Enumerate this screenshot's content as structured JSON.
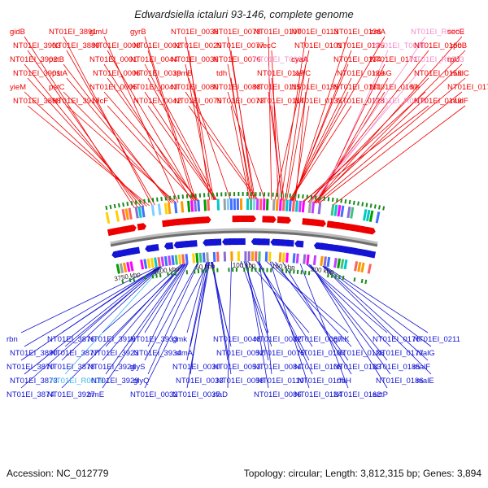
{
  "title": "Edwardsiella ictaluri 93-146, complete genome",
  "accession": "Accession: NC_012779",
  "topology": "Topology: circular; Length: 3,812,315 bp; Genes: 3,894",
  "colors": {
    "forward_gene": "#ee0000",
    "reverse_gene": "#1414d4",
    "rna_gene": "#f28ec8",
    "rna_gene_reverse": "#3ab4e8",
    "backbone": "#6e6e6e",
    "tick": "#1a8a1a"
  },
  "scale_ticks": [
    {
      "label": "3750 kbp",
      "pos": 3750
    },
    {
      "label": "3800 kbp",
      "pos": 3800
    },
    {
      "label": "50 kbp",
      "pos": 50
    },
    {
      "label": "100 kbp",
      "pos": 100
    },
    {
      "label": "150 kbp",
      "pos": 150
    },
    {
      "label": "200 kbp",
      "pos": 200
    }
  ],
  "top_labels": [
    {
      "text": "gidB",
      "type": "cds",
      "anchor": -0.16
    },
    {
      "text": "NT01EI_3903",
      "type": "cds",
      "anchor": -0.155
    },
    {
      "text": "NT01EI_3902",
      "type": "cds",
      "anchor": -0.15
    },
    {
      "text": "NT01EI_3901",
      "type": "cds",
      "anchor": -0.146
    },
    {
      "text": "yieM",
      "type": "cds",
      "anchor": -0.142
    },
    {
      "text": "NT01EI_3898",
      "type": "cds",
      "anchor": -0.138
    },
    {
      "text": "NT01EI_3891",
      "type": "cds",
      "anchor": -0.134
    },
    {
      "text": "NT01EI_3889",
      "type": "cds",
      "anchor": -0.13
    },
    {
      "text": "pstB",
      "type": "cds",
      "anchor": -0.108
    },
    {
      "text": "pstA",
      "type": "cds",
      "anchor": -0.105
    },
    {
      "text": "pstC",
      "type": "cds",
      "anchor": -0.102
    },
    {
      "text": "NT01EI_3917",
      "type": "cds",
      "anchor": -0.099
    },
    {
      "text": "glmU",
      "type": "cds",
      "anchor": -0.096
    },
    {
      "text": "NT01EI_0008",
      "type": "cds",
      "anchor": -0.07
    },
    {
      "text": "NT01EI_0001",
      "type": "cds",
      "anchor": -0.075
    },
    {
      "text": "NT01EI_0006",
      "type": "cds",
      "anchor": -0.068
    },
    {
      "text": "NT01EI_0005",
      "type": "cds",
      "anchor": -0.066
    },
    {
      "text": "recF",
      "type": "cds",
      "anchor": -0.072
    },
    {
      "text": "gyrB",
      "type": "cds",
      "anchor": -0.07
    },
    {
      "text": "NT01EI_0002",
      "type": "cds",
      "anchor": -0.073
    },
    {
      "text": "NT01EI_0044",
      "type": "cds",
      "anchor": -0.04
    },
    {
      "text": "NT01EI_0039",
      "type": "cds",
      "anchor": -0.043
    },
    {
      "text": "NT01EI_0043",
      "type": "cds",
      "anchor": -0.041
    },
    {
      "text": "NT01EI_0042",
      "type": "cds",
      "anchor": -0.042
    },
    {
      "text": "NT01EI_0038",
      "type": "cds",
      "anchor": -0.044
    },
    {
      "text": "NT01EI_0029",
      "type": "cds",
      "anchor": -0.05
    },
    {
      "text": "NT01EI_0036",
      "type": "cds",
      "anchor": -0.046
    },
    {
      "text": "rpmB",
      "type": "cds",
      "anchor": -0.02
    },
    {
      "text": "NT01EI_0080",
      "type": "cds",
      "anchor": 0.02
    },
    {
      "text": "NT01EI_0079",
      "type": "cds",
      "anchor": 0.018
    },
    {
      "text": "NT01EI_0078",
      "type": "cds",
      "anchor": 0.016
    },
    {
      "text": "NT01EI_0077",
      "type": "cds",
      "anchor": 0.014
    },
    {
      "text": "NT01EI_0076",
      "type": "cds",
      "anchor": 0.012
    },
    {
      "text": "tdh",
      "type": "cds",
      "anchor": 0.01
    },
    {
      "text": "NT01EI_0088",
      "type": "cds",
      "anchor": 0.03
    },
    {
      "text": "NT01EI_0073",
      "type": "cds",
      "anchor": 0.008
    },
    {
      "text": "NT01EI_0100",
      "type": "cds",
      "anchor": 0.04
    },
    {
      "text": "wecC",
      "type": "cds",
      "anchor": 0.05
    },
    {
      "text": "NT01EI_T0004",
      "type": "rna",
      "anchor": 0.052
    },
    {
      "text": "NT01EI_0117",
      "type": "cds",
      "anchor": 0.058
    },
    {
      "text": "NT01EI_0115",
      "type": "cds",
      "anchor": 0.056
    },
    {
      "text": "NT01EI_0114",
      "type": "cds",
      "anchor": 0.055
    },
    {
      "text": "NT01EI_0113",
      "type": "cds",
      "anchor": 0.054
    },
    {
      "text": "NT01EI_0101",
      "type": "cds",
      "anchor": 0.045
    },
    {
      "text": "cyaA",
      "type": "cds",
      "anchor": 0.06
    },
    {
      "text": "xerC",
      "type": "cds",
      "anchor": 0.062
    },
    {
      "text": "NT01EI_0139",
      "type": "cds",
      "anchor": 0.075
    },
    {
      "text": "NT01EI_0137",
      "type": "cds",
      "anchor": 0.073
    },
    {
      "text": "NT01EI_0136",
      "type": "cds",
      "anchor": 0.072
    },
    {
      "text": "NT01EI_0135",
      "type": "cds",
      "anchor": 0.071
    },
    {
      "text": "NT01EI_0134",
      "type": "cds",
      "anchor": 0.07
    },
    {
      "text": "NT01EI_0129",
      "type": "cds",
      "anchor": 0.068
    },
    {
      "text": "NT01EI_0131",
      "type": "cds",
      "anchor": 0.069
    },
    {
      "text": "NT01EI_0128",
      "type": "cds",
      "anchor": 0.067
    },
    {
      "text": "zntA",
      "type": "cds",
      "anchor": 0.066
    },
    {
      "text": "NT01EI_T0006",
      "type": "rna",
      "anchor": 0.11
    },
    {
      "text": "NT01EI_0171",
      "type": "cds",
      "anchor": 0.108
    },
    {
      "text": "nusG",
      "type": "cds",
      "anchor": 0.106
    },
    {
      "text": "NT01EI_0167",
      "type": "cds",
      "anchor": 0.104
    },
    {
      "text": "NT01EI_R0008",
      "type": "rna",
      "anchor": 0.1
    },
    {
      "text": "NT01EI_R0009",
      "type": "rna",
      "anchor": 0.098
    },
    {
      "text": "NT01EI_0160",
      "type": "cds",
      "anchor": 0.096
    },
    {
      "text": "NT01EI_R0003",
      "type": "rna",
      "anchor": 0.094
    },
    {
      "text": "NT01EI_0158",
      "type": "cds",
      "anchor": 0.093
    },
    {
      "text": "fre",
      "type": "cds",
      "anchor": 0.087
    },
    {
      "text": "NT01EI_0149",
      "type": "cds",
      "anchor": 0.085
    },
    {
      "text": "secE",
      "type": "cds",
      "anchor": 0.102
    },
    {
      "text": "rpoB",
      "type": "cds",
      "anchor": 0.103
    },
    {
      "text": "rplJ",
      "type": "cds",
      "anchor": 0.101
    },
    {
      "text": "nudC",
      "type": "cds",
      "anchor": 0.105
    },
    {
      "text": "NT01EI_0175",
      "type": "cds",
      "anchor": 0.109
    },
    {
      "text": "nudF",
      "type": "cds",
      "anchor": 0.13
    }
  ],
  "bottom_labels": [
    {
      "text": "rbn",
      "type": "cds",
      "anchor": -0.14
    },
    {
      "text": "NT01EI_3890",
      "type": "cds",
      "anchor": -0.134
    },
    {
      "text": "NT01EI_3870",
      "type": "cds",
      "anchor": -0.137
    },
    {
      "text": "NT01EI_3873",
      "type": "cds",
      "anchor": -0.136
    },
    {
      "text": "NT01EI_3874",
      "type": "cds",
      "anchor": -0.135
    },
    {
      "text": "NT01EI_3876",
      "type": "cds",
      "anchor": -0.134
    },
    {
      "text": "NT01EI_3877",
      "type": "cds",
      "anchor": -0.133
    },
    {
      "text": "NT01EI_3878",
      "type": "cds",
      "anchor": -0.132
    },
    {
      "text": "NT01EI_R0009",
      "type": "rna",
      "anchor": -0.131
    },
    {
      "text": "NT01EI_3927",
      "type": "cds",
      "anchor": -0.095
    },
    {
      "text": "NT01EI_3916",
      "type": "cds",
      "anchor": -0.1
    },
    {
      "text": "NT01EI_3923",
      "type": "cds",
      "anchor": -0.098
    },
    {
      "text": "NT01EI_3924",
      "type": "cds",
      "anchor": -0.097
    },
    {
      "text": "NT01EI_3929",
      "type": "cds",
      "anchor": -0.094
    },
    {
      "text": "trmE",
      "type": "cds",
      "anchor": -0.093
    },
    {
      "text": "NT01EI_3933",
      "type": "cds",
      "anchor": -0.091
    },
    {
      "text": "NT01EI_3934",
      "type": "cds",
      "anchor": -0.09
    },
    {
      "text": "glyS",
      "type": "cds",
      "anchor": -0.074
    },
    {
      "text": "glyQ",
      "type": "cds",
      "anchor": -0.073
    },
    {
      "text": "NT01EI_0032",
      "type": "cds",
      "anchor": -0.058
    },
    {
      "text": "gmk",
      "type": "cds",
      "anchor": -0.06
    },
    {
      "text": "slmA",
      "type": "cds",
      "anchor": -0.056
    },
    {
      "text": "NT01EI_0030",
      "type": "cds",
      "anchor": -0.059
    },
    {
      "text": "NT01EI_0033",
      "type": "cds",
      "anchor": -0.057
    },
    {
      "text": "NT01EI_0037",
      "type": "cds",
      "anchor": -0.055
    },
    {
      "text": "NT01EI_0048",
      "type": "cds",
      "anchor": -0.053
    },
    {
      "text": "NT01EI_0052",
      "type": "cds",
      "anchor": -0.052
    },
    {
      "text": "NT01EI_0053",
      "type": "cds",
      "anchor": -0.051
    },
    {
      "text": "NT01EI_0058",
      "type": "cds",
      "anchor": -0.05
    },
    {
      "text": "rfaD",
      "type": "cds",
      "anchor": -0.02
    },
    {
      "text": "NT01EI_0082",
      "type": "cds",
      "anchor": 0.0
    },
    {
      "text": "NT01EI_0075",
      "type": "cds",
      "anchor": -0.005
    },
    {
      "text": "NT01EI_0084",
      "type": "cds",
      "anchor": 0.002
    },
    {
      "text": "NT01EI_0110",
      "type": "cds",
      "anchor": 0.025
    },
    {
      "text": "NT01EI_0086",
      "type": "cds",
      "anchor": 0.004
    },
    {
      "text": "NT01EI_0087",
      "type": "cds",
      "anchor": 0.006
    },
    {
      "text": "NT01EI_0107",
      "type": "cds",
      "anchor": 0.02
    },
    {
      "text": "NT01EI_0108",
      "type": "cds",
      "anchor": 0.022
    },
    {
      "text": "NT01EI_0109",
      "type": "cds",
      "anchor": 0.024
    },
    {
      "text": "NT01EI_0124",
      "type": "cds",
      "anchor": 0.042
    },
    {
      "text": "gntK",
      "type": "cds",
      "anchor": 0.036
    },
    {
      "text": "NT01EI_0126",
      "type": "cds",
      "anchor": 0.044
    },
    {
      "text": "NT01EI_0133",
      "type": "cds",
      "anchor": 0.05
    },
    {
      "text": "rfaH",
      "type": "cds",
      "anchor": 0.062
    },
    {
      "text": "NT01EI_0162",
      "type": "cds",
      "anchor": 0.09
    },
    {
      "text": "NT01EI_0176",
      "type": "cds",
      "anchor": 0.1
    },
    {
      "text": "NT01EI_0177",
      "type": "cds",
      "anchor": 0.101
    },
    {
      "text": "NT01EI_0185",
      "type": "cds",
      "anchor": 0.104
    },
    {
      "text": "NT01EI_0186",
      "type": "cds",
      "anchor": 0.105
    },
    {
      "text": "actP",
      "type": "cds",
      "anchor": 0.107
    },
    {
      "text": "NT01EI_0211",
      "type": "cds",
      "anchor": 0.13
    },
    {
      "text": "malG",
      "type": "cds",
      "anchor": 0.128
    },
    {
      "text": "malF",
      "type": "cds",
      "anchor": 0.127
    },
    {
      "text": "malE",
      "type": "cds",
      "anchor": 0.126
    }
  ]
}
